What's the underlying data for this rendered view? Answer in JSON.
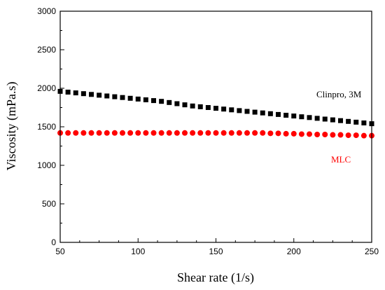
{
  "chart_data": {
    "type": "scatter",
    "title": "",
    "xlabel": "Shear rate (1/s)",
    "ylabel": "Viscosity (mPa.s)",
    "xlim": [
      50,
      250
    ],
    "ylim": [
      0,
      3000
    ],
    "xticks": [
      50,
      100,
      150,
      200,
      250
    ],
    "yticks": [
      0,
      500,
      1000,
      1500,
      2000,
      2500,
      3000
    ],
    "grid": false,
    "legend": "none",
    "series": [
      {
        "name": "Clinpro, 3M",
        "color": "#000000",
        "marker": "square",
        "x": [
          50,
          55,
          60,
          65,
          70,
          75,
          80,
          85,
          90,
          95,
          100,
          105,
          110,
          115,
          120,
          125,
          130,
          135,
          140,
          145,
          150,
          155,
          160,
          165,
          170,
          175,
          180,
          185,
          190,
          195,
          200,
          205,
          210,
          215,
          220,
          225,
          230,
          235,
          240,
          245,
          250
        ],
        "y": [
          1960,
          1950,
          1940,
          1930,
          1920,
          1910,
          1900,
          1890,
          1880,
          1870,
          1860,
          1850,
          1840,
          1830,
          1815,
          1800,
          1785,
          1770,
          1760,
          1750,
          1740,
          1730,
          1720,
          1710,
          1700,
          1690,
          1680,
          1670,
          1660,
          1650,
          1640,
          1630,
          1620,
          1610,
          1600,
          1590,
          1580,
          1570,
          1560,
          1550,
          1540
        ]
      },
      {
        "name": "MLC",
        "color": "#ff0000",
        "marker": "circle",
        "x": [
          50,
          55,
          60,
          65,
          70,
          75,
          80,
          85,
          90,
          95,
          100,
          105,
          110,
          115,
          120,
          125,
          130,
          135,
          140,
          145,
          150,
          155,
          160,
          165,
          170,
          175,
          180,
          185,
          190,
          195,
          200,
          205,
          210,
          215,
          220,
          225,
          230,
          235,
          240,
          245,
          250
        ],
        "y": [
          1420,
          1420,
          1420,
          1420,
          1420,
          1420,
          1420,
          1420,
          1420,
          1420,
          1420,
          1420,
          1420,
          1420,
          1420,
          1420,
          1420,
          1420,
          1420,
          1420,
          1420,
          1420,
          1420,
          1420,
          1420,
          1420,
          1420,
          1415,
          1415,
          1410,
          1410,
          1405,
          1405,
          1400,
          1400,
          1395,
          1395,
          1390,
          1390,
          1385,
          1385
        ]
      }
    ]
  }
}
